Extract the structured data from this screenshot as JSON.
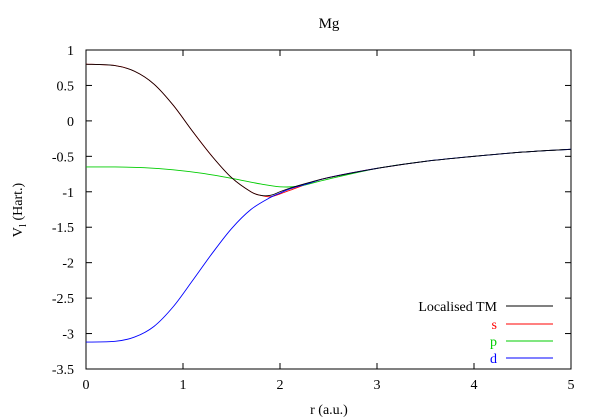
{
  "chart_data": {
    "type": "line",
    "title": "Mg",
    "xlabel": "r (a.u.)",
    "ylabel_main": "V",
    "ylabel_sub": "l",
    "ylabel_rest": " (Hart.)",
    "xlim": [
      0,
      5
    ],
    "ylim": [
      -3.5,
      1
    ],
    "x_ticks": [
      0,
      1,
      2,
      3,
      4,
      5
    ],
    "x_tick_labels": [
      "0",
      "1",
      "2",
      "3",
      "4",
      "5"
    ],
    "y_ticks": [
      1,
      0.5,
      0,
      -0.5,
      -1,
      -1.5,
      -2,
      -2.5,
      -3,
      -3.5
    ],
    "y_tick_labels": [
      "1",
      "0.5",
      "0",
      "-0.5",
      "-1",
      "-1.5",
      "-2",
      "-2.5",
      "-3",
      "-3.5"
    ],
    "grid": false,
    "legend_position": "bottom-right",
    "series": [
      {
        "name": "Localised TM",
        "color": "#000000",
        "x": [
          0,
          0.3,
          0.5,
          0.7,
          0.9,
          1.1,
          1.3,
          1.5,
          1.7,
          1.8,
          1.9,
          2.0,
          2.1,
          2.3,
          2.5,
          3.0,
          3.5,
          4.0,
          4.5,
          5.0
        ],
        "y": [
          0.8,
          0.78,
          0.7,
          0.52,
          0.22,
          -0.15,
          -0.5,
          -0.8,
          -1.0,
          -1.05,
          -1.05,
          -1.0,
          -0.95,
          -0.87,
          -0.8,
          -0.67,
          -0.57,
          -0.5,
          -0.44,
          -0.4
        ]
      },
      {
        "name": "s",
        "color": "#ff0000",
        "x": [
          0,
          0.3,
          0.5,
          0.7,
          0.9,
          1.1,
          1.3,
          1.5,
          1.7,
          1.8,
          1.9,
          2.0,
          2.1,
          2.3,
          2.5,
          3.0,
          3.5,
          4.0,
          4.5,
          5.0
        ],
        "y": [
          0.8,
          0.78,
          0.7,
          0.52,
          0.22,
          -0.15,
          -0.5,
          -0.8,
          -1.0,
          -1.05,
          -1.07,
          -1.03,
          -0.98,
          -0.88,
          -0.8,
          -0.67,
          -0.57,
          -0.5,
          -0.44,
          -0.4
        ]
      },
      {
        "name": "p",
        "color": "#00cc00",
        "x": [
          0,
          0.3,
          0.6,
          0.9,
          1.2,
          1.5,
          1.8,
          2.0,
          2.2,
          2.5,
          3.0,
          3.5,
          4.0,
          4.5,
          5.0
        ],
        "y": [
          -0.65,
          -0.65,
          -0.66,
          -0.69,
          -0.74,
          -0.81,
          -0.89,
          -0.93,
          -0.92,
          -0.82,
          -0.67,
          -0.57,
          -0.5,
          -0.44,
          -0.4
        ]
      },
      {
        "name": "d",
        "color": "#0000ff",
        "x": [
          0,
          0.3,
          0.5,
          0.7,
          0.9,
          1.1,
          1.3,
          1.5,
          1.7,
          1.9,
          2.0,
          2.1,
          2.3,
          2.5,
          3.0,
          3.5,
          4.0,
          4.5,
          5.0
        ],
        "y": [
          -3.12,
          -3.11,
          -3.05,
          -2.9,
          -2.62,
          -2.25,
          -1.87,
          -1.52,
          -1.25,
          -1.08,
          -1.02,
          -0.96,
          -0.88,
          -0.8,
          -0.67,
          -0.57,
          -0.5,
          -0.44,
          -0.4
        ]
      }
    ]
  }
}
